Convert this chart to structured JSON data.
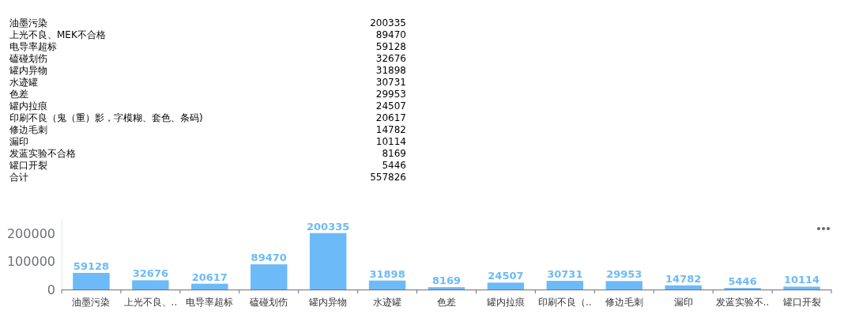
{
  "chart_data": [
    {
      "type": "other",
      "categories": [
        "油墨污染",
        "上光不良、MEK不合格",
        "电导率超标",
        "磕碰划伤",
        "罐内异物",
        "水迹罐",
        "色差",
        "罐内拉痕",
        "印刷不良（鬼（重）影，字模糊、套色、条码)",
        "修边毛刺",
        "漏印",
        "发蓝实验不合格",
        "罐口开裂",
        "合计"
      ],
      "values": [
        200335,
        89470,
        59128,
        32676,
        31898,
        30731,
        29953,
        24507,
        20617,
        14782,
        10114,
        8169,
        5446,
        557826
      ],
      "data_labels": true
    },
    {
      "type": "bar",
      "categories": [
        "油墨污染",
        "上光不良、..",
        "电导率超标",
        "磕碰划伤",
        "罐内异物",
        "水迹罐",
        "色差",
        "罐内拉痕",
        "印刷不良（..",
        "修边毛刺",
        "漏印",
        "发蓝实验不..",
        "罐口开裂"
      ],
      "values": [
        59128,
        32676,
        20617,
        89470,
        200335,
        31898,
        8169,
        24507,
        30731,
        29953,
        14782,
        5446,
        10114
      ],
      "color": "#6cbaf8",
      "ylim": [
        0,
        250000
      ],
      "yticks": [
        0,
        100000,
        200000
      ],
      "data_labels": true,
      "grid": false
    }
  ]
}
